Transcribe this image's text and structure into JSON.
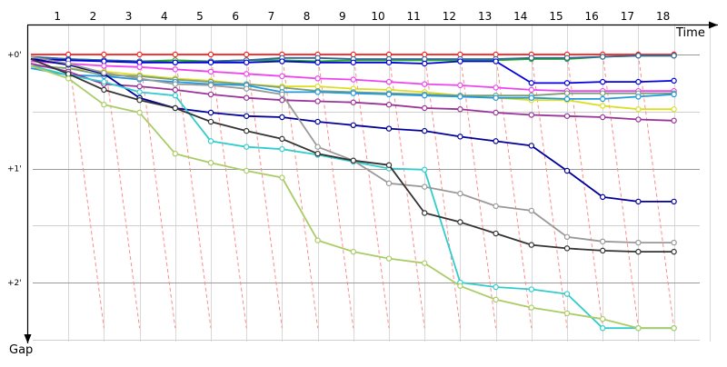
{
  "chart_data": {
    "type": "line",
    "x_label": "Time",
    "y_label": "Gap",
    "x_ticks": [
      "1",
      "2",
      "3",
      "4",
      "5",
      "6",
      "7",
      "8",
      "9",
      "10",
      "11",
      "12",
      "13",
      "14",
      "15",
      "16",
      "17",
      "18"
    ],
    "y_ticks": [
      {
        "value": 0,
        "label": "+0'"
      },
      {
        "value": 1,
        "label": "+1'"
      },
      {
        "value": 2,
        "label": "+2'"
      }
    ],
    "y_range": [
      -0.03,
      2.55
    ],
    "grid": true,
    "series": [
      {
        "color": "#ff2020",
        "values": [
          0.0,
          0.0,
          0.0,
          0.0,
          0.0,
          0.0,
          0.0,
          0.0,
          0.0,
          0.0,
          0.0,
          0.0,
          0.0,
          0.0,
          0.0,
          0.0,
          0.0,
          0.0,
          0.0
        ]
      },
      {
        "color": "#20b020",
        "values": [
          0.02,
          0.04,
          0.05,
          0.06,
          0.05,
          0.06,
          0.05,
          0.05,
          0.06,
          0.05,
          0.05,
          0.05,
          0.05,
          0.05,
          0.04,
          0.04,
          0.02,
          0.01,
          0.01
        ]
      },
      {
        "color": "#336699",
        "values": [
          0.02,
          0.04,
          0.05,
          0.06,
          0.07,
          0.06,
          0.05,
          0.03,
          0.03,
          0.04,
          0.04,
          0.04,
          0.04,
          0.04,
          0.03,
          0.03,
          0.02,
          0.01,
          0.01
        ]
      },
      {
        "color": "#0000dd",
        "values": [
          0.04,
          0.05,
          0.06,
          0.07,
          0.07,
          0.07,
          0.07,
          0.06,
          0.07,
          0.07,
          0.07,
          0.08,
          0.06,
          0.06,
          0.25,
          0.25,
          0.24,
          0.24,
          0.23
        ]
      },
      {
        "color": "#ee44ee",
        "values": [
          0.06,
          0.08,
          0.1,
          0.11,
          0.13,
          0.15,
          0.17,
          0.19,
          0.21,
          0.22,
          0.24,
          0.26,
          0.27,
          0.29,
          0.31,
          0.32,
          0.32,
          0.32,
          0.32
        ]
      },
      {
        "color": "#dddd22",
        "values": [
          0.1,
          0.12,
          0.15,
          0.18,
          0.21,
          0.23,
          0.26,
          0.28,
          0.28,
          0.3,
          0.31,
          0.33,
          0.36,
          0.38,
          0.4,
          0.4,
          0.45,
          0.48,
          0.48
        ]
      },
      {
        "color": "#7a9e7a",
        "values": [
          0.1,
          0.12,
          0.18,
          0.19,
          0.22,
          0.24,
          0.26,
          0.29,
          0.32,
          0.33,
          0.34,
          0.35,
          0.36,
          0.36,
          0.36,
          0.34,
          0.34,
          0.34,
          0.34
        ]
      },
      {
        "color": "#2299dd",
        "values": [
          0.12,
          0.18,
          0.19,
          0.22,
          0.24,
          0.26,
          0.27,
          0.33,
          0.33,
          0.34,
          0.35,
          0.36,
          0.37,
          0.38,
          0.38,
          0.39,
          0.39,
          0.37,
          0.35
        ]
      },
      {
        "color": "#993399",
        "values": [
          0.08,
          0.15,
          0.26,
          0.28,
          0.31,
          0.35,
          0.38,
          0.4,
          0.41,
          0.42,
          0.44,
          0.47,
          0.48,
          0.51,
          0.53,
          0.54,
          0.55,
          0.57,
          0.58
        ]
      },
      {
        "color": "#000099",
        "values": [
          0.04,
          0.09,
          0.17,
          0.38,
          0.47,
          0.51,
          0.54,
          0.55,
          0.59,
          0.62,
          0.65,
          0.67,
          0.72,
          0.76,
          0.8,
          1.02,
          1.25,
          1.29,
          1.29
        ]
      },
      {
        "color": "#33cccc",
        "values": [
          0.1,
          0.18,
          0.24,
          0.33,
          0.36,
          0.76,
          0.81,
          0.83,
          0.88,
          0.94,
          1.0,
          1.01,
          2.0,
          2.04,
          2.06,
          2.1,
          2.4,
          2.4,
          2.4
        ]
      },
      {
        "color": "#999999",
        "values": [
          0.02,
          0.08,
          0.16,
          0.21,
          0.26,
          0.27,
          0.3,
          0.35,
          0.81,
          0.93,
          1.13,
          1.16,
          1.22,
          1.33,
          1.37,
          1.6,
          1.64,
          1.65,
          1.65
        ]
      },
      {
        "color": "#333333",
        "values": [
          0.04,
          0.17,
          0.31,
          0.4,
          0.47,
          0.59,
          0.67,
          0.74,
          0.87,
          0.93,
          0.97,
          1.39,
          1.47,
          1.57,
          1.67,
          1.7,
          1.72,
          1.73,
          1.73
        ]
      },
      {
        "color": "#aacc66",
        "values": [
          0.1,
          0.21,
          0.44,
          0.51,
          0.87,
          0.95,
          1.02,
          1.08,
          1.63,
          1.73,
          1.79,
          1.83,
          2.03,
          2.15,
          2.22,
          2.27,
          2.32,
          2.4,
          2.4
        ]
      }
    ],
    "overtake_lines": [
      [
        [
          1,
          0.0
        ],
        [
          2,
          2.4
        ]
      ],
      [
        [
          2,
          0.0
        ],
        [
          3,
          2.4
        ]
      ],
      [
        [
          3,
          0.0
        ],
        [
          4,
          2.4
        ]
      ],
      [
        [
          4,
          0.0
        ],
        [
          5,
          2.4
        ]
      ],
      [
        [
          5,
          0.0
        ],
        [
          6,
          2.4
        ]
      ],
      [
        [
          6,
          0.0
        ],
        [
          7,
          2.4
        ]
      ],
      [
        [
          7,
          0.0
        ],
        [
          8,
          2.4
        ]
      ],
      [
        [
          8,
          0.0
        ],
        [
          9,
          2.4
        ]
      ],
      [
        [
          9,
          0.0
        ],
        [
          10,
          2.4
        ]
      ],
      [
        [
          10,
          0.0
        ],
        [
          11,
          2.4
        ]
      ],
      [
        [
          11,
          0.0
        ],
        [
          12,
          2.4
        ]
      ],
      [
        [
          12,
          0.0
        ],
        [
          13,
          2.4
        ]
      ],
      [
        [
          13,
          0.0
        ],
        [
          14,
          2.4
        ]
      ],
      [
        [
          14,
          0.0
        ],
        [
          15,
          2.4
        ]
      ],
      [
        [
          15,
          0.0
        ],
        [
          16,
          2.4
        ]
      ],
      [
        [
          16,
          0.0
        ],
        [
          17,
          2.4
        ]
      ],
      [
        [
          17,
          0.0
        ],
        [
          18,
          2.4
        ]
      ]
    ]
  }
}
